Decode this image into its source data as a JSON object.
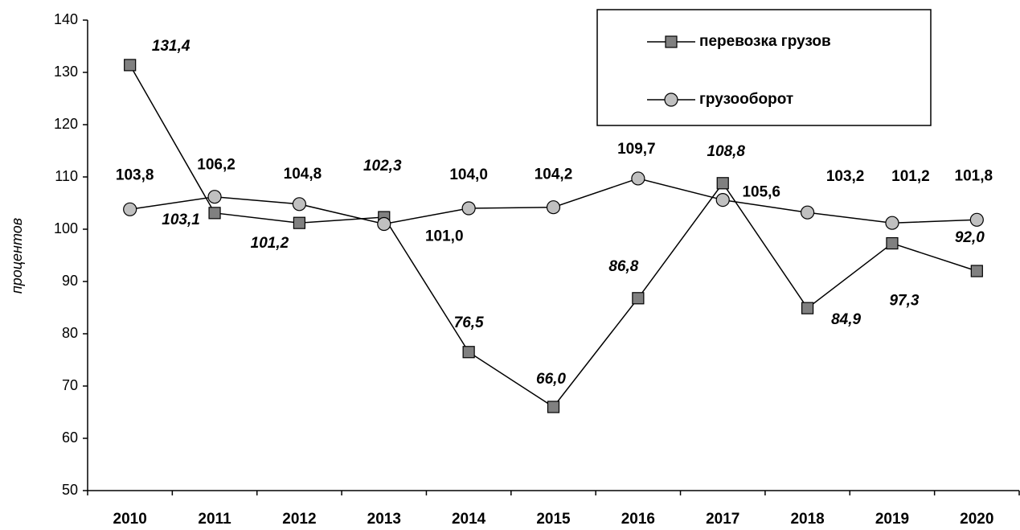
{
  "chart_data": {
    "type": "line",
    "y_label": "процентов",
    "categories": [
      "2010",
      "2011",
      "2012",
      "2013",
      "2014",
      "2015",
      "2016",
      "2017",
      "2018",
      "2019",
      "2020"
    ],
    "series": [
      {
        "name": "перевозка грузов",
        "color": "#808080",
        "marker": "square",
        "values": [
          131.4,
          103.1,
          101.2,
          102.3,
          76.5,
          66.0,
          86.8,
          108.8,
          84.9,
          97.3,
          92.0
        ],
        "value_labels": [
          "131,4",
          "103,1",
          "101,2",
          "102,3",
          "76,5",
          "66,0",
          "86,8",
          "108,8",
          "84,9",
          "97,3",
          "92,0"
        ]
      },
      {
        "name": "грузооборот",
        "color": "#c0c0c0",
        "marker": "circle",
        "values": [
          103.8,
          106.2,
          104.8,
          101.0,
          104.0,
          104.2,
          109.7,
          105.6,
          103.2,
          101.2,
          101.8
        ],
        "value_labels": [
          "103,8",
          "106,2",
          "104,8",
          "101,0",
          "104,0",
          "104,2",
          "109,7",
          "105,6",
          "103,2",
          "101,2",
          "101,8"
        ]
      }
    ],
    "ylim": [
      50,
      140
    ],
    "yticks": [
      50,
      60,
      70,
      80,
      90,
      100,
      110,
      120,
      130,
      140
    ],
    "legend": "top-right"
  }
}
